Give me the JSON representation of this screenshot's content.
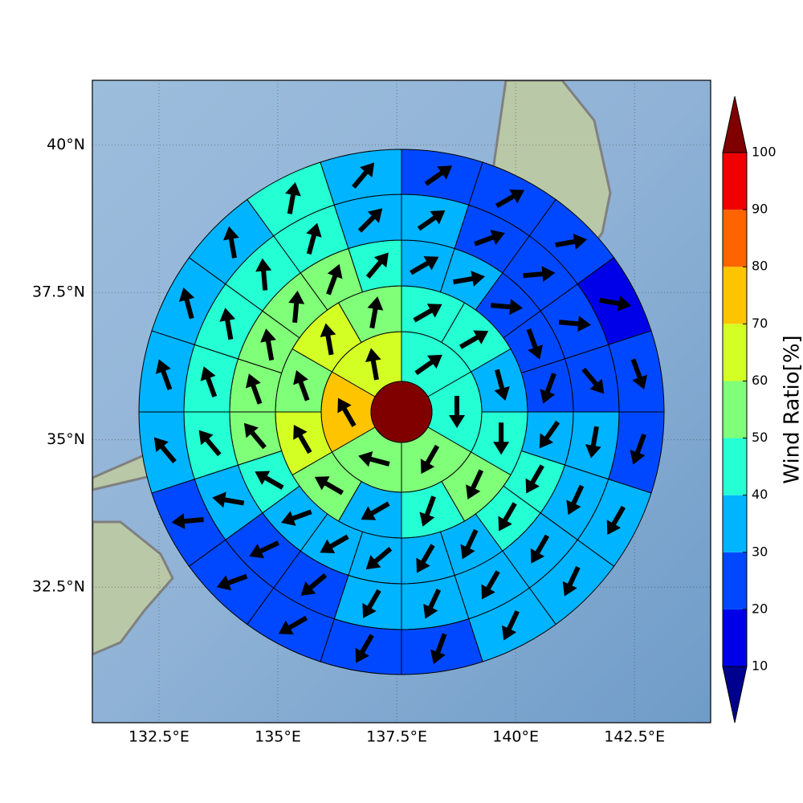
{
  "chart_data": {
    "type": "polar_sectors",
    "xlim": [
      131.1,
      144.1
    ],
    "ylim": [
      30.2,
      41.1
    ],
    "xticks": [
      {
        "value": 132.5,
        "label": "132.5°E"
      },
      {
        "value": 135,
        "label": "135°E"
      },
      {
        "value": 137.5,
        "label": "137.5°E"
      },
      {
        "value": 140,
        "label": "140°E"
      },
      {
        "value": 142.5,
        "label": "142.5°E"
      }
    ],
    "yticks": [
      {
        "value": 32.5,
        "label": "32.5°N"
      },
      {
        "value": 35,
        "label": "35°N"
      },
      {
        "value": 37.5,
        "label": "37.5°N"
      },
      {
        "value": 40,
        "label": "40°N"
      }
    ],
    "grid": true,
    "center_color": "#800000",
    "rings": [
      {
        "values": [
          45,
          45,
          55,
          55,
          75,
          65
        ],
        "directions": [
          55,
          180,
          210,
          285,
          330,
          350
        ]
      },
      {
        "values": [
          45,
          45,
          35,
          45,
          55,
          45,
          35,
          55,
          65,
          55,
          65,
          55
        ],
        "directions": [
          60,
          60,
          165,
          180,
          205,
          200,
          240,
          300,
          330,
          340,
          350,
          10
        ]
      },
      {
        "values": [
          35,
          35,
          25,
          25,
          25,
          35,
          45,
          45,
          35,
          35,
          35,
          35,
          35,
          45,
          55,
          55,
          55,
          55,
          55,
          45
        ],
        "directions": [
          60,
          80,
          95,
          160,
          200,
          215,
          210,
          210,
          205,
          210,
          230,
          240,
          250,
          300,
          320,
          340,
          350,
          5,
          20,
          40
        ]
      },
      {
        "values": [
          35,
          25,
          25,
          25,
          25,
          35,
          35,
          35,
          35,
          35,
          35,
          25,
          25,
          35,
          45,
          45,
          45,
          45,
          45,
          35
        ],
        "directions": [
          55,
          70,
          85,
          95,
          140,
          190,
          205,
          210,
          210,
          205,
          210,
          230,
          245,
          280,
          320,
          340,
          350,
          355,
          15,
          45
        ]
      },
      {
        "values": [
          25,
          25,
          25,
          15,
          25,
          25,
          35,
          35,
          35,
          25,
          25,
          25,
          25,
          25,
          35,
          35,
          35,
          35,
          45,
          35
        ],
        "directions": [
          55,
          60,
          80,
          100,
          160,
          200,
          210,
          205,
          205,
          200,
          210,
          240,
          250,
          265,
          320,
          340,
          345,
          350,
          10,
          40
        ]
      }
    ],
    "colorbar": {
      "label": "Wind Ratio[%]",
      "ticks": [
        10,
        20,
        30,
        40,
        50,
        60,
        70,
        80,
        90,
        100
      ],
      "colors": [
        "#00008f",
        "#0000e8",
        "#0048ff",
        "#00b4ff",
        "#24ffd4",
        "#80ff78",
        "#d4ff24",
        "#ffc400",
        "#ff6400",
        "#f00000",
        "#800000"
      ]
    }
  }
}
